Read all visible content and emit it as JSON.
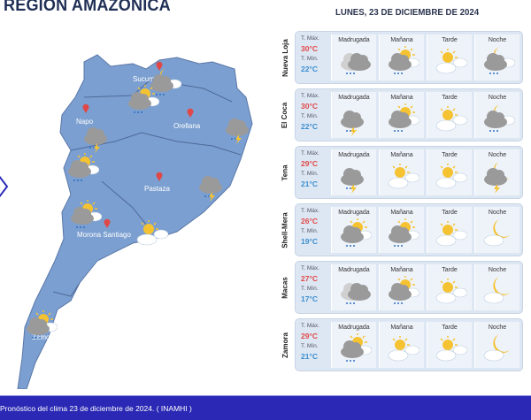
{
  "title": "REGION AMAZONICA",
  "date": "LUNES, 23 DE DICIEMBRE DE 2024",
  "labels": {
    "tmax": "T. Máx.",
    "tmin": "T. Mín.",
    "periods": [
      "Madrugada",
      "Mañana",
      "Tarde",
      "Noche"
    ]
  },
  "map": {
    "provinces": [
      "Sucumbíos",
      "Napo",
      "Orellana",
      "Pastaza",
      "Morona Santiago",
      "Zamora Chinchipe"
    ]
  },
  "rows": [
    {
      "city": "Nueva Loja",
      "max": "30°C",
      "min": "22°C",
      "icons": [
        "rain-cloud",
        "cloud-sun-rain",
        "sun-cloud",
        "night-cloud-rain"
      ]
    },
    {
      "city": "El Coca",
      "max": "30°C",
      "min": "22°C",
      "icons": [
        "storm",
        "cloud-sun-rain",
        "sun-cloud",
        "night-cloud-rain"
      ]
    },
    {
      "city": "Tena",
      "max": "29°C",
      "min": "21°C",
      "icons": [
        "storm",
        "sun-cloud",
        "sun-cloud",
        "night-storm"
      ]
    },
    {
      "city": "Shell-Mera",
      "max": "26°C",
      "min": "19°C",
      "icons": [
        "cloud-sun-rain",
        "cloud-sun-rain",
        "sun-cloud",
        "moon-cloud"
      ]
    },
    {
      "city": "Macas",
      "max": "27°C",
      "min": "17°C",
      "icons": [
        "rain-cloud",
        "cloud-sun-rain",
        "sun-cloud",
        "moon-cloud"
      ]
    },
    {
      "city": "Zamora",
      "max": "29°C",
      "min": "21°C",
      "icons": [
        "cloud-sun-rain",
        "sun-cloud",
        "sun-cloud",
        "moon-cloud"
      ]
    }
  ],
  "footer": "Pronóstico del clima 23 de diciembre de 2024.  ( INAMHI )",
  "colors": {
    "map": "#7b9fd0",
    "footer": "#2a28b4",
    "max": "#e34848",
    "min": "#3c8ed0"
  }
}
